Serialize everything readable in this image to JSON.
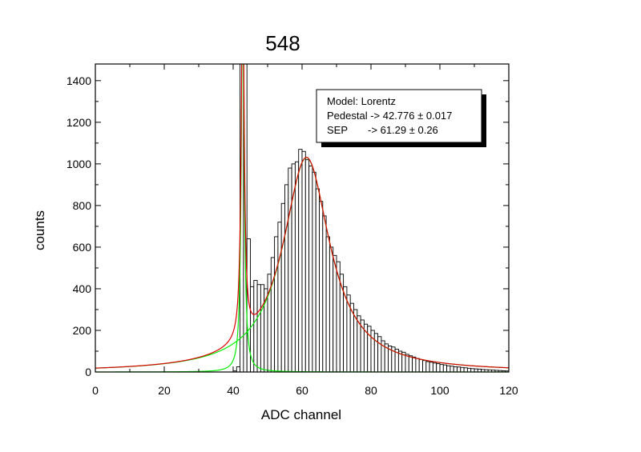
{
  "chart_data": {
    "type": "bar",
    "title": "548",
    "xlabel": "ADC channel",
    "ylabel": "counts",
    "xlim": [
      0,
      120
    ],
    "ylim": [
      0,
      1480
    ],
    "x_ticks": [
      0,
      20,
      40,
      60,
      80,
      100,
      120
    ],
    "y_ticks": [
      0,
      200,
      400,
      600,
      800,
      1000,
      1200,
      1400
    ],
    "bin_width": 1,
    "histogram": {
      "x": [
        40,
        41,
        42,
        43,
        44,
        45,
        46,
        47,
        48,
        49,
        50,
        51,
        52,
        53,
        54,
        55,
        56,
        57,
        58,
        59,
        60,
        61,
        62,
        63,
        64,
        65,
        66,
        67,
        68,
        69,
        70,
        71,
        72,
        73,
        74,
        75,
        76,
        77,
        78,
        79,
        80,
        81,
        82,
        83,
        84,
        85,
        86,
        87,
        88,
        89,
        90,
        91,
        92,
        93,
        94,
        95,
        96,
        97,
        98,
        99,
        100,
        101,
        102,
        103,
        104,
        105,
        106,
        107,
        108,
        109,
        110,
        111,
        112,
        113,
        114,
        115,
        116,
        117,
        118,
        119
      ],
      "values": [
        5,
        25,
        1480,
        1480,
        640,
        410,
        440,
        420,
        420,
        400,
        470,
        550,
        650,
        720,
        810,
        900,
        980,
        1000,
        1010,
        1070,
        1060,
        1020,
        990,
        960,
        880,
        820,
        750,
        650,
        600,
        560,
        530,
        470,
        410,
        370,
        330,
        300,
        270,
        250,
        230,
        220,
        200,
        185,
        170,
        150,
        135,
        125,
        120,
        110,
        100,
        95,
        85,
        78,
        72,
        65,
        60,
        55,
        50,
        47,
        43,
        40,
        36,
        34,
        30,
        28,
        25,
        24,
        22,
        20,
        18,
        16,
        15,
        14,
        12,
        11,
        10,
        9,
        8,
        7,
        6,
        5
      ]
    },
    "legend_box": {
      "model": "Model: Lorentz",
      "pedestal": "Pedestal -> 42.776 ± 0.017",
      "sep": "SEP       -> 61.29 ± 0.26"
    },
    "fits": [
      {
        "kind": "lorentz",
        "center": 42.776,
        "height": 1800,
        "hwhm": 0.5,
        "color": "#00ee00"
      },
      {
        "kind": "lorentz",
        "center": 61.29,
        "height": 1030,
        "hwhm": 8.3,
        "color": "#00ee00"
      },
      {
        "kind": "sum",
        "color": "#dd0000"
      }
    ],
    "colors": {
      "title": "#ee0000",
      "bars": "#ffffff",
      "bar_edge": "#000000",
      "fit_component": "#00ee00",
      "fit_sum": "#dd0000"
    }
  }
}
